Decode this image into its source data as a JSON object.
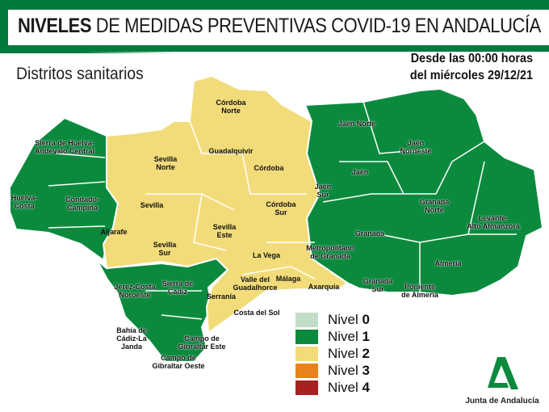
{
  "header": {
    "title_bold": "NIVELES",
    "title_rest": "DE MEDIDAS PREVENTIVAS COVID-19 EN ANDALUCÍA",
    "subtitle": "Distritos sanitarios",
    "date_line1": "Desde las 00:00 horas",
    "date_line2": "del miércoles 29/12/21"
  },
  "colors": {
    "brand": "#007a3d",
    "nivel_0": "#c3dcc6",
    "nivel_1": "#0b8a3e",
    "nivel_2": "#f2dc7a",
    "nivel_3": "#e8821a",
    "nivel_4": "#a82020"
  },
  "legend": [
    {
      "prefix": "Nivel",
      "level": "0"
    },
    {
      "prefix": "Nivel",
      "level": "1"
    },
    {
      "prefix": "Nivel",
      "level": "2"
    },
    {
      "prefix": "Nivel",
      "level": "3"
    },
    {
      "prefix": "Nivel",
      "level": "4"
    }
  ],
  "districts": [
    {
      "name": "Sierra de Huelva-\nAndévalo Central",
      "level": 1
    },
    {
      "name": "Huelva-\nCosta",
      "level": 1
    },
    {
      "name": "Condado-\nCampiña",
      "level": 1
    },
    {
      "name": "Sevilla\nNorte",
      "level": 2
    },
    {
      "name": "Sevilla",
      "level": 2
    },
    {
      "name": "Aljarafe",
      "level": 2
    },
    {
      "name": "Sevilla\nSur",
      "level": 2
    },
    {
      "name": "Sevilla\nEste",
      "level": 2
    },
    {
      "name": "Córdoba\nNorte",
      "level": 2
    },
    {
      "name": "Guadalquivir",
      "level": 2
    },
    {
      "name": "Córdoba",
      "level": 2
    },
    {
      "name": "Córdoba\nSur",
      "level": 2
    },
    {
      "name": "La Vega",
      "level": 2
    },
    {
      "name": "Valle del\nGuadalhorce",
      "level": 2
    },
    {
      "name": "Málaga",
      "level": 2
    },
    {
      "name": "Axarquía",
      "level": 2
    },
    {
      "name": "Serranía",
      "level": 2
    },
    {
      "name": "Costa del Sol",
      "level": 2
    },
    {
      "name": "Jerez-Costa\nNoroeste",
      "level": 1
    },
    {
      "name": "Sierra de\nCádiz",
      "level": 1
    },
    {
      "name": "Bahía de\nCádiz-La\nJanda",
      "level": 1
    },
    {
      "name": "Campo de\nGibraltar Este",
      "level": 1
    },
    {
      "name": "Campo de\nGibraltar Oeste",
      "level": 1
    },
    {
      "name": "Jaén Norte",
      "level": 1
    },
    {
      "name": "Jaén\nNordeste",
      "level": 1
    },
    {
      "name": "Jaén",
      "level": 1
    },
    {
      "name": "Jaén\nSur",
      "level": 1
    },
    {
      "name": "Granada\nNorte",
      "level": 1
    },
    {
      "name": "Granada",
      "level": 1
    },
    {
      "name": "Metropolitano\nde Granada",
      "level": 1
    },
    {
      "name": "Levante-\nAlto Almanzora",
      "level": 1
    },
    {
      "name": "Almería",
      "level": 1
    },
    {
      "name": "Granada\nSur",
      "level": 1
    },
    {
      "name": "Poniente\nde Almería",
      "level": 1
    }
  ],
  "logo": {
    "text": "Junta de Andalucía"
  }
}
